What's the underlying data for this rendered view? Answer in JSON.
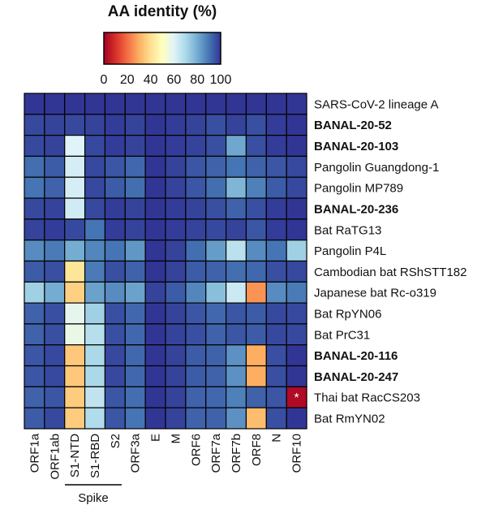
{
  "chart_data": {
    "type": "heatmap",
    "title": "AA identity (%)",
    "colorbar": {
      "ticks": [
        "0",
        "20",
        "40",
        "60",
        "80",
        "100"
      ],
      "range": [
        0,
        100
      ],
      "colors": [
        "#a50026",
        "#d73027",
        "#f46d43",
        "#fdae61",
        "#fee090",
        "#ffffbf",
        "#e0f3f8",
        "#abd9e9",
        "#74add1",
        "#4575b4",
        "#313695"
      ]
    },
    "columns": [
      "ORF1a",
      "ORF1ab",
      "S1-NTD",
      "S1-RBD",
      "S2",
      "ORF3a",
      "E",
      "M",
      "ORF6",
      "ORF7a",
      "ORF7b",
      "ORF8",
      "N",
      "ORF10"
    ],
    "column_group": {
      "label": "Spike",
      "columns": [
        "S1-NTD",
        "S1-RBD"
      ]
    },
    "rows": [
      {
        "label": "SARS-CoV-2 lineage A",
        "bold": false
      },
      {
        "label": "BANAL-20-52",
        "bold": true
      },
      {
        "label": "BANAL-20-103",
        "bold": true
      },
      {
        "label": "Pangolin Guangdong-1",
        "bold": false
      },
      {
        "label": "Pangolin MP789",
        "bold": false
      },
      {
        "label": "BANAL-20-236",
        "bold": true
      },
      {
        "label": "Bat RaTG13",
        "bold": false
      },
      {
        "label": "Pangolin P4L",
        "bold": false
      },
      {
        "label": "Cambodian bat RShSTT182",
        "bold": false
      },
      {
        "label": "Japanese bat Rc-o319",
        "bold": false
      },
      {
        "label": "Bat RpYN06",
        "bold": false
      },
      {
        "label": "Bat PrC31",
        "bold": false
      },
      {
        "label": "BANAL-20-116",
        "bold": true
      },
      {
        "label": "BANAL-20-247",
        "bold": true
      },
      {
        "label": "Thai bat RacCS203",
        "bold": false
      },
      {
        "label": "Bat RmYN02",
        "bold": false
      }
    ],
    "values": [
      [
        100,
        100,
        100,
        100,
        100,
        100,
        100,
        100,
        100,
        100,
        100,
        100,
        100,
        100
      ],
      [
        97,
        98,
        97,
        98,
        99,
        98,
        100,
        99,
        98,
        96,
        98,
        96,
        99,
        100
      ],
      [
        97,
        98,
        60,
        97,
        99,
        98,
        100,
        99,
        98,
        96,
        81,
        96,
        99,
        100
      ],
      [
        91,
        94,
        62,
        97,
        95,
        92,
        100,
        98,
        95,
        93,
        90,
        93,
        95,
        97
      ],
      [
        90,
        93,
        62,
        97,
        94,
        91,
        100,
        98,
        95,
        91,
        78,
        88,
        94,
        97
      ],
      [
        97,
        98,
        63,
        97,
        99,
        98,
        100,
        99,
        98,
        96,
        93,
        96,
        99,
        100
      ],
      [
        98,
        99,
        97,
        90,
        99,
        98,
        100,
        99,
        98,
        97,
        98,
        95,
        99,
        100
      ],
      [
        86,
        89,
        80,
        87,
        90,
        84,
        100,
        98,
        91,
        83,
        67,
        86,
        90,
        72
      ],
      [
        94,
        96,
        42,
        89,
        96,
        93,
        100,
        98,
        94,
        93,
        91,
        92,
        96,
        97
      ],
      [
        72,
        80,
        37,
        82,
        86,
        82,
        98,
        94,
        87,
        76,
        64,
        26,
        86,
        89
      ],
      [
        93,
        96,
        58,
        72,
        96,
        92,
        100,
        98,
        95,
        92,
        95,
        94,
        97,
        97
      ],
      [
        93,
        96,
        57,
        68,
        96,
        92,
        100,
        98,
        96,
        93,
        95,
        94,
        97,
        97
      ],
      [
        95,
        97,
        35,
        70,
        97,
        92,
        100,
        98,
        94,
        93,
        85,
        30,
        96,
        100
      ],
      [
        95,
        97,
        35,
        70,
        97,
        92,
        100,
        98,
        94,
        93,
        85,
        30,
        96,
        100
      ],
      [
        93,
        95,
        36,
        66,
        95,
        91,
        100,
        98,
        93,
        92,
        88,
        93,
        95,
        2
      ],
      [
        94,
        97,
        36,
        69,
        95,
        90,
        100,
        98,
        93,
        93,
        85,
        33,
        96,
        100
      ]
    ],
    "annotations": [
      {
        "row": "Thai bat RacCS203",
        "column": "ORF10",
        "text": "*"
      }
    ]
  }
}
